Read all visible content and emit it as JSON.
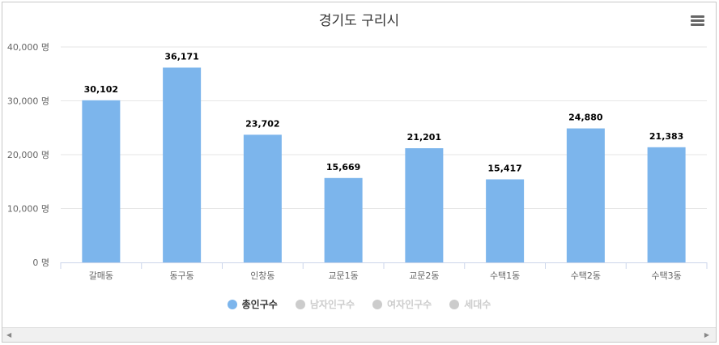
{
  "chart_data": {
    "type": "bar",
    "title": "경기도 구리시",
    "categories": [
      "갈매동",
      "동구동",
      "인창동",
      "교문1동",
      "교문2동",
      "수택1동",
      "수택2동",
      "수택3동"
    ],
    "series": [
      {
        "name": "총인구수",
        "values": [
          30102,
          36171,
          23702,
          15669,
          21201,
          15417,
          24880,
          21383
        ],
        "color": "#7cb5ec",
        "visible": true
      }
    ],
    "data_labels": [
      "30,102",
      "36,171",
      "23,702",
      "15,669",
      "21,201",
      "15,417",
      "24,880",
      "21,383"
    ],
    "ylim": [
      0,
      40000
    ],
    "y_ticks": [
      0,
      10000,
      20000,
      30000,
      40000
    ],
    "y_tick_labels": [
      "0 명",
      "10,000 명",
      "20,000 명",
      "30,000 명",
      "40,000 명"
    ],
    "grid": true,
    "legend_position": "bottom-center"
  },
  "legend": [
    {
      "label": "총인구수",
      "color": "#7cb5ec",
      "active": true
    },
    {
      "label": "남자인구수",
      "color": "#cccccc",
      "active": false
    },
    {
      "label": "여자인구수",
      "color": "#cccccc",
      "active": false
    },
    {
      "label": "세대수",
      "color": "#cccccc",
      "active": false
    }
  ],
  "menu_icon": "hamburger-menu-icon",
  "scrollbar": {
    "left_icon": "arrow-left-icon",
    "right_icon": "arrow-right-icon"
  }
}
